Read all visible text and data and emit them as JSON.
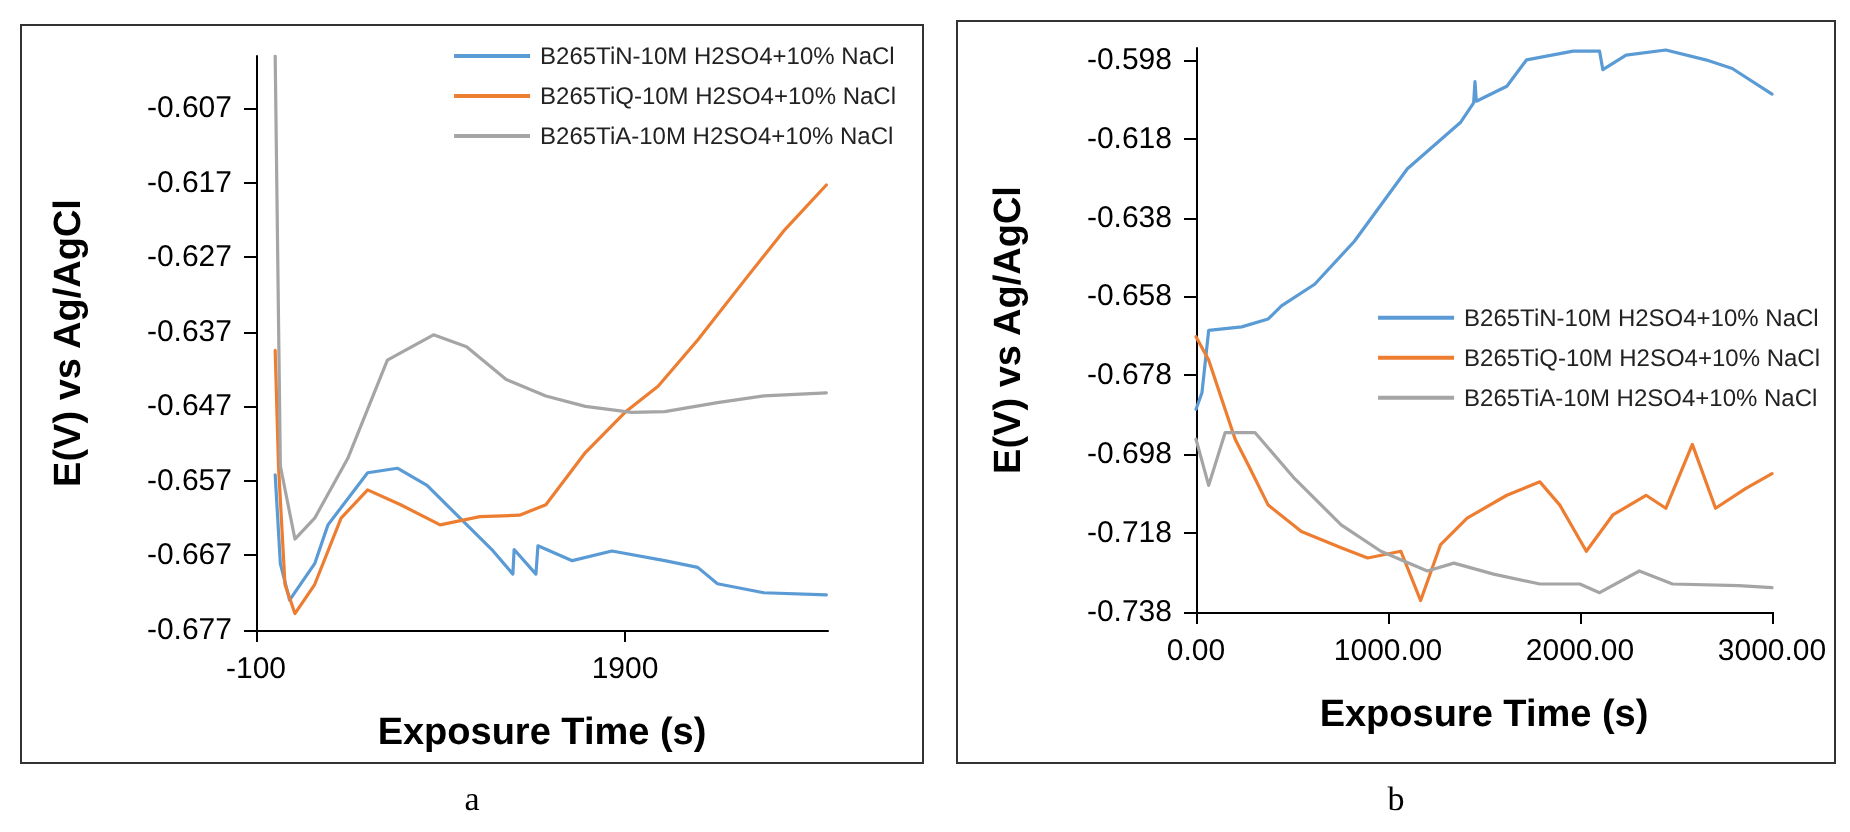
{
  "chart_data": [
    {
      "type": "line",
      "xlabel": "Exposure Time (s)",
      "ylabel": "E(V) vs Ag/AgCl",
      "xlim": [
        -100,
        3000
      ],
      "xticks": [
        -100,
        1900
      ],
      "ylim": [
        -0.677,
        -0.6
      ],
      "yticks": [
        -0.677,
        -0.667,
        -0.657,
        -0.647,
        -0.637,
        -0.627,
        -0.617,
        -0.607
      ],
      "grid": false,
      "legend": "top right",
      "marker": "none",
      "line_style": "solid",
      "annotations": [
        "a"
      ],
      "series": [
        {
          "name": "B265TiN-10M H2SO4+10% NaCl",
          "color": "#5b9bd5",
          "x": [
            4,
            32,
            82,
            218,
            290,
            505,
            666,
            827,
            1006,
            1185,
            1292,
            1299,
            1417,
            1428,
            1614,
            1829,
            2115,
            2294,
            2401,
            2652,
            2991
          ],
          "values": [
            -0.6562,
            -0.6681,
            -0.673,
            -0.6681,
            -0.6629,
            -0.6559,
            -0.6553,
            -0.6576,
            -0.662,
            -0.6664,
            -0.6695,
            -0.6662,
            -0.6695,
            -0.6657,
            -0.6677,
            -0.6664,
            -0.6677,
            -0.6686,
            -0.6708,
            -0.672,
            -0.6723
          ]
        },
        {
          "name": "B265TiQ-10M H2SO4+10% NaCl",
          "color": "#ed7d31",
          "x": [
            4,
            22,
            57,
            111,
            218,
            361,
            505,
            684,
            898,
            1113,
            1328,
            1471,
            1685,
            1900,
            2079,
            2294,
            2544,
            2759,
            2991
          ],
          "values": [
            -0.6395,
            -0.655,
            -0.6709,
            -0.6748,
            -0.6709,
            -0.662,
            -0.6582,
            -0.6602,
            -0.6629,
            -0.6618,
            -0.6616,
            -0.6602,
            -0.6532,
            -0.6478,
            -0.6443,
            -0.6381,
            -0.6302,
            -0.6235,
            -0.6173
          ]
        },
        {
          "name": "B265TiA-10M H2SO4+10% NaCl",
          "color": "#a5a5a5",
          "x": [
            4,
            32,
            111,
            218,
            397,
            612,
            862,
            1041,
            1256,
            1471,
            1685,
            1936,
            2115,
            2401,
            2652,
            2991
          ],
          "values": [
            -0.6,
            -0.655,
            -0.6648,
            -0.662,
            -0.654,
            -0.6408,
            -0.6374,
            -0.639,
            -0.6434,
            -0.6456,
            -0.647,
            -0.6478,
            -0.6477,
            -0.6465,
            -0.6456,
            -0.6452
          ]
        }
      ]
    },
    {
      "type": "line",
      "xlabel": "Exposure Time (s)",
      "ylabel": "E(V) vs Ag/AgCl",
      "xlim": [
        0,
        3000
      ],
      "xticks": [
        {
          "value": 0,
          "label": "0.00"
        },
        {
          "value": 1000,
          "label": "1000.00"
        },
        {
          "value": 2000,
          "label": "2000.00"
        },
        {
          "value": 3000,
          "label": "3000.00"
        }
      ],
      "ylim": [
        -0.738,
        -0.595
      ],
      "yticks": [
        -0.738,
        -0.718,
        -0.698,
        -0.678,
        -0.658,
        -0.638,
        -0.618,
        -0.598
      ],
      "grid": false,
      "legend": "right",
      "marker": "none",
      "line_style": "solid",
      "annotations": [
        "b"
      ],
      "series": [
        {
          "name": "B265TiN-10M H2SO4+10% NaCl",
          "color": "#5b9bd5",
          "x": [
            0,
            31,
            66,
            238,
            376,
            445,
            618,
            825,
            1101,
            1377,
            1446,
            1453,
            1460,
            1619,
            1722,
            1964,
            2102,
            2119,
            2240,
            2447,
            2655,
            2793,
            3000
          ],
          "values": [
            -0.6866,
            -0.6824,
            -0.6666,
            -0.6657,
            -0.6637,
            -0.6604,
            -0.6549,
            -0.644,
            -0.6256,
            -0.6139,
            -0.6089,
            -0.6035,
            -0.6085,
            -0.6047,
            -0.598,
            -0.5958,
            -0.5958,
            -0.6005,
            -0.5968,
            -0.5955,
            -0.598,
            -0.6002,
            -0.6067
          ]
        },
        {
          "name": "B265TiQ-10M H2SO4+10% NaCl",
          "color": "#ed7d31",
          "x": [
            0,
            66,
            135,
            204,
            273,
            376,
            549,
            756,
            894,
            1067,
            1170,
            1274,
            1412,
            1619,
            1791,
            1895,
            2033,
            2171,
            2344,
            2447,
            2585,
            2706,
            2862,
            3000
          ],
          "values": [
            -0.6682,
            -0.6741,
            -0.6842,
            -0.6942,
            -0.7008,
            -0.7109,
            -0.7176,
            -0.7217,
            -0.7243,
            -0.7226,
            -0.7351,
            -0.7209,
            -0.7142,
            -0.7084,
            -0.705,
            -0.7109,
            -0.7226,
            -0.7134,
            -0.7084,
            -0.7117,
            -0.6955,
            -0.7117,
            -0.7067,
            -0.7029
          ]
        },
        {
          "name": "B265TiA-10M H2SO4+10% NaCl",
          "color": "#a5a5a5",
          "x": [
            0,
            66,
            152,
            307,
            514,
            756,
            963,
            1205,
            1343,
            1550,
            1791,
            1999,
            2102,
            2309,
            2482,
            2827,
            3000
          ],
          "values": [
            -0.6942,
            -0.7059,
            -0.6925,
            -0.6925,
            -0.7042,
            -0.7159,
            -0.7226,
            -0.7276,
            -0.7256,
            -0.7284,
            -0.7309,
            -0.7309,
            -0.7331,
            -0.7276,
            -0.7309,
            -0.7313,
            -0.7318
          ]
        }
      ]
    }
  ]
}
